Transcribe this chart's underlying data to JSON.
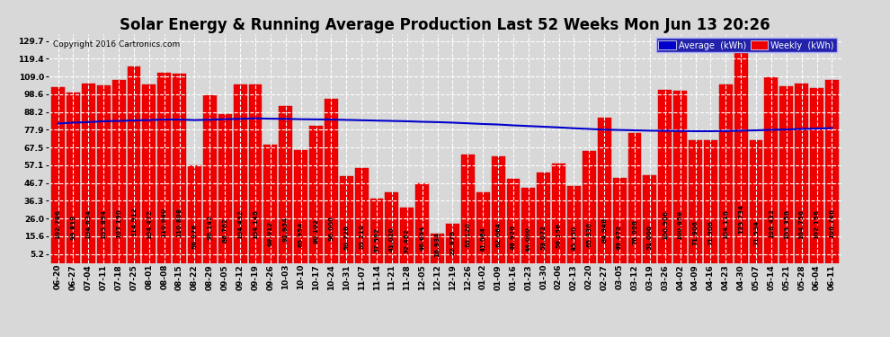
{
  "title": "Solar Energy & Running Average Production Last 52 Weeks Mon Jun 13 20:26",
  "copyright": "Copyright 2016 Cartronics.com",
  "bar_color": "#ee0000",
  "bar_edge_color": "#cc0000",
  "avg_line_color": "#0000cc",
  "background_color": "#d8d8d8",
  "grid_color": "#ffffff",
  "weekly_values": [
    102.786,
    99.818,
    104.634,
    103.894,
    107.19,
    114.912,
    104.472,
    110.94,
    110.808,
    56.976,
    98.142,
    86.762,
    104.432,
    104.148,
    68.912,
    91.954,
    65.954,
    80.102,
    96.0,
    50.726,
    55.21,
    37.592,
    41.02,
    32.462,
    46.654,
    16.934,
    22.878,
    63.12,
    41.084,
    62.064,
    48.92,
    44.0,
    53.072,
    58.156,
    45.15,
    65.336,
    84.948,
    49.472,
    76.008,
    51.0,
    100.906,
    100.858,
    71.906,
    71.906,
    104.118,
    129.734,
    71.534,
    108.432,
    103.358,
    104.756,
    102.156,
    106.766
  ],
  "avg_values": [
    81.5,
    82.0,
    82.3,
    82.8,
    83.0,
    83.3,
    83.5,
    83.8,
    83.8,
    83.5,
    83.7,
    84.0,
    84.2,
    84.5,
    84.3,
    84.2,
    84.0,
    83.9,
    83.8,
    83.6,
    83.4,
    83.2,
    83.0,
    82.8,
    82.5,
    82.3,
    82.0,
    81.6,
    81.2,
    80.9,
    80.4,
    80.0,
    79.6,
    79.2,
    78.7,
    78.3,
    77.9,
    77.7,
    77.5,
    77.3,
    77.2,
    77.1,
    77.0,
    77.0,
    77.1,
    77.3,
    77.5,
    77.8,
    78.0,
    78.3,
    78.5,
    78.8
  ],
  "dates": [
    "06-20",
    "06-27",
    "07-04",
    "07-11",
    "07-18",
    "07-25",
    "08-01",
    "08-08",
    "08-15",
    "08-22",
    "08-29",
    "09-05",
    "09-12",
    "09-19",
    "09-26",
    "10-03",
    "10-10",
    "10-17",
    "10-24",
    "10-31",
    "11-07",
    "11-14",
    "11-21",
    "11-28",
    "12-05",
    "12-12",
    "12-19",
    "12-26",
    "01-02",
    "01-09",
    "01-16",
    "01-23",
    "01-30",
    "02-06",
    "02-13",
    "02-20",
    "02-27",
    "03-05",
    "03-12",
    "03-19",
    "03-26",
    "04-02",
    "04-09",
    "04-16",
    "04-23",
    "04-30",
    "05-07",
    "05-14",
    "05-21",
    "05-28",
    "06-04",
    "06-11"
  ],
  "ylim_min": 0,
  "ylim_max": 134,
  "yticks": [
    5.2,
    15.6,
    26.0,
    36.3,
    46.7,
    57.1,
    67.5,
    77.9,
    88.2,
    98.6,
    109.0,
    119.4,
    129.7
  ],
  "title_fontsize": 12,
  "tick_fontsize": 6.5,
  "value_fontsize": 5.2,
  "legend_avg_color": "#0000cc",
  "legend_weekly_color": "#ee0000"
}
